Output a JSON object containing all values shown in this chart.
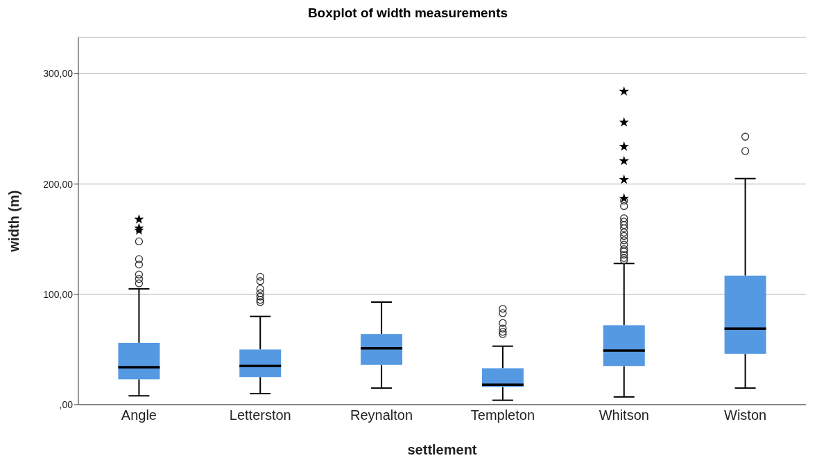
{
  "chart_data": {
    "type": "box",
    "title": "Boxplot of width measurements",
    "xlabel": "settlement",
    "ylabel": "width (m)",
    "categories": [
      "Angle",
      "Letterston",
      "Reynalton",
      "Templeton",
      "Whitson",
      "Wiston"
    ],
    "color": "#5699e3",
    "boxes": [
      {
        "low": 8,
        "q1": 23,
        "median": 34,
        "q3": 56,
        "high": 105,
        "outliers": [
          110,
          114,
          118,
          127,
          132,
          148
        ]
      },
      {
        "low": 10,
        "q1": 25,
        "median": 35,
        "q3": 50,
        "high": 80,
        "outliers": [
          93,
          95,
          98,
          101,
          105,
          112,
          116
        ]
      },
      {
        "low": 15,
        "q1": 36,
        "median": 51,
        "q3": 64,
        "high": 93
      },
      {
        "low": 4,
        "q1": 16,
        "median": 18,
        "q3": 33,
        "high": 53,
        "outliers": [
          64,
          66,
          69,
          74,
          83,
          87
        ]
      },
      {
        "low": 7,
        "q1": 35,
        "median": 49,
        "q3": 72,
        "high": 128,
        "outliers": [
          131,
          133,
          136,
          139,
          141,
          145,
          149,
          153,
          156,
          160,
          163,
          166,
          169,
          180,
          185
        ]
      },
      {
        "low": 15,
        "q1": 46,
        "median": 69,
        "q3": 117,
        "high": 205,
        "outliers": [
          230,
          243
        ]
      }
    ],
    "series": [
      {
        "type": "scatter",
        "marker": "star",
        "color": "#000000",
        "x": [
          "Angle",
          "Angle",
          "Angle",
          "Whitson",
          "Whitson",
          "Whitson",
          "Whitson",
          "Whitson",
          "Whitson"
        ],
        "values": [
          158,
          160,
          168,
          187,
          204,
          221,
          234,
          256,
          284
        ]
      }
    ],
    "ylim": [
      0,
      333
    ],
    "yticks": [
      {
        "value": 0,
        "label": ",00"
      },
      {
        "value": 100,
        "label": "100,00"
      },
      {
        "value": 200,
        "label": "200,00"
      },
      {
        "value": 300,
        "label": "300,00"
      }
    ],
    "grid": "y"
  }
}
